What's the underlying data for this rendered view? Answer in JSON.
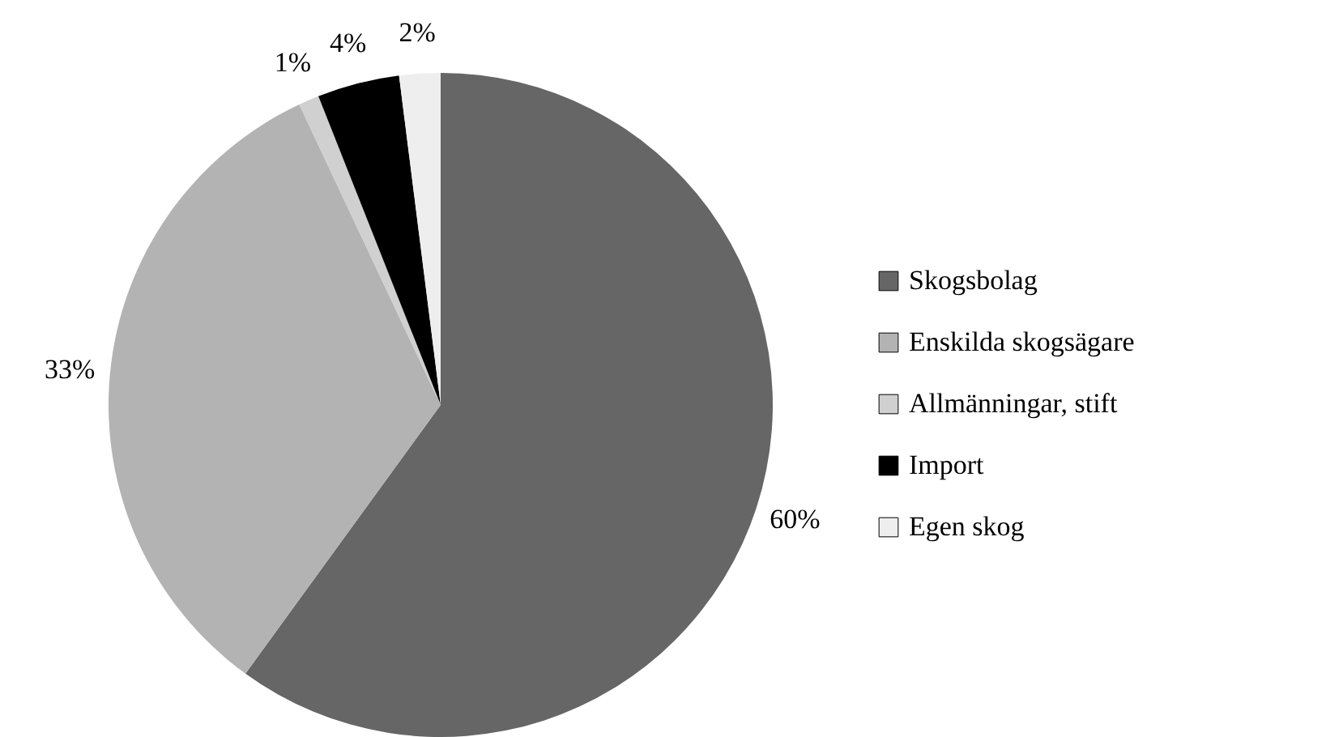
{
  "chart_data": {
    "type": "pie",
    "categories": [
      "Skogsbolag",
      "Enskilda skogsägare",
      "Allmänningar, stift",
      "Import",
      "Egen skog"
    ],
    "values": [
      60,
      33,
      1,
      4,
      2
    ],
    "colors": [
      "#666666",
      "#b3b3b3",
      "#d0d0d0",
      "#000000",
      "#eeeeee"
    ],
    "value_labels": [
      "60%",
      "33%",
      "1%",
      "4%",
      "2%"
    ],
    "legend": "right"
  }
}
